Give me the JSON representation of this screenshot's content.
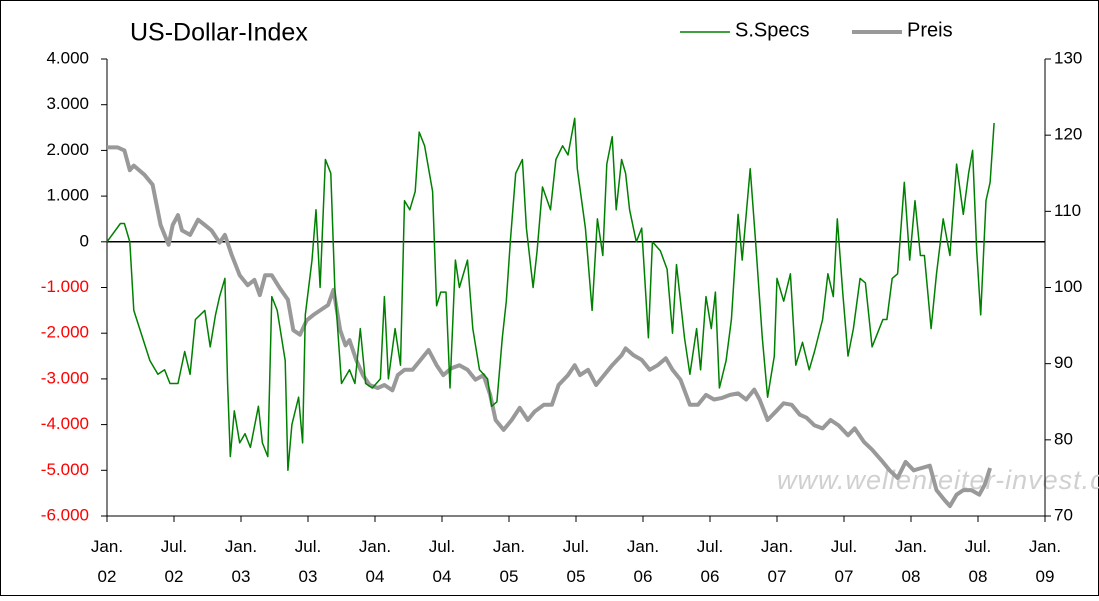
{
  "chart_data": {
    "type": "line",
    "title": "US-Dollar-Index",
    "watermark": "www.wellenreiter-invest.de",
    "zero_line": true,
    "negative_tick_color": "#ff0000",
    "xlim": [
      2002,
      2009
    ],
    "xticks": [
      {
        "value": 2002,
        "label": "Jan. 02"
      },
      {
        "value": 2002.5,
        "label": "Jul. 02"
      },
      {
        "value": 2003,
        "label": "Jan. 03"
      },
      {
        "value": 2003.5,
        "label": "Jul. 03"
      },
      {
        "value": 2004,
        "label": "Jan. 04"
      },
      {
        "value": 2004.5,
        "label": "Jul. 04"
      },
      {
        "value": 2005,
        "label": "Jan. 05"
      },
      {
        "value": 2005.5,
        "label": "Jul. 05"
      },
      {
        "value": 2006,
        "label": "Jan. 06"
      },
      {
        "value": 2006.5,
        "label": "Jul. 06"
      },
      {
        "value": 2007,
        "label": "Jan. 07"
      },
      {
        "value": 2007.5,
        "label": "Jul. 07"
      },
      {
        "value": 2008,
        "label": "Jan. 08"
      },
      {
        "value": 2008.5,
        "label": "Jul. 08"
      },
      {
        "value": 2009,
        "label": "Jan. 09"
      }
    ],
    "ylim": [
      -6000,
      4000
    ],
    "yticks": [
      {
        "value": 4000,
        "label": "4.000"
      },
      {
        "value": 3000,
        "label": "3.000"
      },
      {
        "value": 2000,
        "label": "2.000"
      },
      {
        "value": 1000,
        "label": "1.000"
      },
      0,
      {
        "value": -1000,
        "label": "-1.000"
      },
      {
        "value": -2000,
        "label": "-2.000"
      },
      {
        "value": -3000,
        "label": "-3.000"
      },
      {
        "value": -4000,
        "label": "-4.000"
      },
      {
        "value": -5000,
        "label": "-5.000"
      },
      {
        "value": -6000,
        "label": "-6.000"
      }
    ],
    "y2lim": [
      70,
      130
    ],
    "y2ticks": [
      70,
      80,
      90,
      100,
      110,
      120,
      130
    ],
    "series": [
      {
        "name": "S.Specs",
        "color": "#008000",
        "width": 1.5,
        "x": [
          2002.0,
          2002.1,
          2002.13,
          2002.17,
          2002.2,
          2002.32,
          2002.38,
          2002.43,
          2002.47,
          2002.53,
          2002.58,
          2002.62,
          2002.66,
          2002.73,
          2002.77,
          2002.81,
          2002.84,
          2002.88,
          2002.9,
          2002.92,
          2002.95,
          2002.99,
          2003.03,
          2003.07,
          2003.13,
          2003.16,
          2003.2,
          2003.23,
          2003.27,
          2003.33,
          2003.35,
          2003.38,
          2003.43,
          2003.46,
          2003.48,
          2003.53,
          2003.56,
          2003.59,
          2003.63,
          2003.67,
          2003.7,
          2003.75,
          2003.81,
          2003.85,
          2003.89,
          2003.93,
          2003.98,
          2004.04,
          2004.07,
          2004.1,
          2004.15,
          2004.19,
          2004.22,
          2004.26,
          2004.3,
          2004.33,
          2004.37,
          2004.43,
          2004.46,
          2004.49,
          2004.53,
          2004.56,
          2004.6,
          2004.63,
          2004.69,
          2004.73,
          2004.78,
          2004.84,
          2004.87,
          2004.91,
          2004.95,
          2004.98,
          2005.01,
          2005.05,
          2005.1,
          2005.13,
          2005.18,
          2005.21,
          2005.25,
          2005.31,
          2005.35,
          2005.4,
          2005.44,
          2005.49,
          2005.51,
          2005.57,
          2005.62,
          2005.66,
          2005.7,
          2005.73,
          2005.77,
          2005.8,
          2005.84,
          2005.87,
          2005.9,
          2005.95,
          2005.99,
          2006.04,
          2006.07,
          2006.13,
          2006.18,
          2006.22,
          2006.25,
          2006.31,
          2006.35,
          2006.4,
          2006.43,
          2006.47,
          2006.51,
          2006.54,
          2006.57,
          2006.62,
          2006.66,
          2006.71,
          2006.74,
          2006.8,
          2006.84,
          2006.89,
          2006.93,
          2006.98,
          2007.0,
          2007.05,
          2007.1,
          2007.14,
          2007.19,
          2007.24,
          2007.28,
          2007.34,
          2007.38,
          2007.42,
          2007.45,
          2007.49,
          2007.53,
          2007.57,
          2007.62,
          2007.66,
          2007.71,
          2007.75,
          2007.79,
          2007.82,
          2007.86,
          2007.9,
          2007.95,
          2007.99,
          2008.03,
          2008.07,
          2008.1,
          2008.15,
          2008.19,
          2008.24,
          2008.29,
          2008.34,
          2008.39,
          2008.43,
          2008.46,
          2008.49,
          2008.52,
          2008.56,
          2008.59,
          2008.62
        ],
        "values": [
          0,
          400,
          400,
          0,
          -1500,
          -2600,
          -2900,
          -2800,
          -3100,
          -3100,
          -2400,
          -2900,
          -1700,
          -1500,
          -2300,
          -1600,
          -1200,
          -800,
          -3100,
          -4700,
          -3700,
          -4400,
          -4200,
          -4500,
          -3600,
          -4400,
          -4700,
          -1200,
          -1500,
          -2600,
          -5000,
          -4000,
          -3400,
          -4400,
          -1600,
          -400,
          700,
          -1000,
          1800,
          1500,
          -1000,
          -3100,
          -2800,
          -3100,
          -1900,
          -3100,
          -3200,
          -3000,
          -1200,
          -3000,
          -1900,
          -2700,
          900,
          700,
          1100,
          2400,
          2100,
          1100,
          -1400,
          -1100,
          -1100,
          -3200,
          -400,
          -1000,
          -400,
          -1900,
          -2800,
          -3000,
          -3600,
          -3500,
          -2100,
          -1300,
          0,
          1500,
          1800,
          300,
          -1000,
          -200,
          1200,
          700,
          1800,
          2100,
          1900,
          2700,
          1600,
          300,
          -1500,
          500,
          -300,
          1700,
          2300,
          700,
          1800,
          1500,
          700,
          0,
          300,
          -2100,
          0,
          -200,
          -600,
          -2000,
          -500,
          -2100,
          -2900,
          -1900,
          -2800,
          -1200,
          -1900,
          -1100,
          -3200,
          -2600,
          -1700,
          600,
          -400,
          1600,
          0,
          -2100,
          -3400,
          -2500,
          -800,
          -1300,
          -700,
          -2700,
          -2200,
          -2800,
          -2400,
          -1700,
          -700,
          -1200,
          500,
          -1100,
          -2500,
          -1900,
          -800,
          -900,
          -2300,
          -2000,
          -1700,
          -1700,
          -800,
          -700,
          1300,
          -400,
          900,
          -300,
          -300,
          -1900,
          -700,
          500,
          -300,
          1700,
          600,
          1500,
          2000,
          -200,
          -1600,
          900,
          1300,
          2600
        ]
      },
      {
        "name": "Preis",
        "color": "#999999",
        "width": 4,
        "axis": "y2",
        "x": [
          2002.0,
          2002.08,
          2002.13,
          2002.17,
          2002.2,
          2002.28,
          2002.34,
          2002.4,
          2002.46,
          2002.49,
          2002.53,
          2002.56,
          2002.62,
          2002.68,
          2002.73,
          2002.78,
          2002.84,
          2002.88,
          2002.93,
          2002.99,
          2003.05,
          2003.1,
          2003.14,
          2003.18,
          2003.23,
          2003.29,
          2003.35,
          2003.39,
          2003.44,
          2003.49,
          2003.54,
          2003.59,
          2003.65,
          2003.69,
          2003.74,
          2003.78,
          2003.81,
          2003.86,
          2003.91,
          2003.96,
          2004.02,
          2004.07,
          2004.13,
          2004.17,
          2004.22,
          2004.28,
          2004.34,
          2004.4,
          2004.46,
          2004.51,
          2004.57,
          2004.63,
          2004.69,
          2004.75,
          2004.81,
          2004.86,
          2004.9,
          2004.96,
          2005.02,
          2005.08,
          2005.14,
          2005.19,
          2005.26,
          2005.32,
          2005.37,
          2005.44,
          2005.49,
          2005.53,
          2005.59,
          2005.65,
          2005.71,
          2005.77,
          2005.84,
          2005.87,
          2005.93,
          2005.99,
          2006.05,
          2006.11,
          2006.17,
          2006.22,
          2006.28,
          2006.35,
          2006.41,
          2006.47,
          2006.53,
          2006.59,
          2006.65,
          2006.71,
          2006.77,
          2006.83,
          2006.87,
          2006.93,
          2006.99,
          2007.05,
          2007.11,
          2007.17,
          2007.22,
          2007.28,
          2007.34,
          2007.4,
          2007.46,
          2007.53,
          2007.58,
          2007.65,
          2007.71,
          2007.78,
          2007.84,
          2007.9,
          2007.96,
          2008.02,
          2008.08,
          2008.14,
          2008.19,
          2008.25,
          2008.29,
          2008.34,
          2008.39,
          2008.45,
          2008.51,
          2008.55,
          2008.59
        ],
        "values": [
          118.4,
          118.4,
          118,
          115.4,
          116,
          114.8,
          113.5,
          108.2,
          105.6,
          108.2,
          109.5,
          107.5,
          106.9,
          108.9,
          108.2,
          107.5,
          105.9,
          106.9,
          104.3,
          101.6,
          100.3,
          101,
          99,
          101.6,
          101.6,
          99.9,
          98.4,
          94.4,
          93.8,
          95.7,
          96.4,
          97,
          97.7,
          99.7,
          94.4,
          92.4,
          93.1,
          90.5,
          88.5,
          87.2,
          86.8,
          87.2,
          86.5,
          88.5,
          89.2,
          89.2,
          90.5,
          91.8,
          89.8,
          88.5,
          89.4,
          89.8,
          89.2,
          87.9,
          88.5,
          85.9,
          82.6,
          81.3,
          82.6,
          84.2,
          82.6,
          83.7,
          84.6,
          84.6,
          87.2,
          88.5,
          89.8,
          88.5,
          89.2,
          87.2,
          88.5,
          89.8,
          91.1,
          92,
          91.1,
          90.5,
          89.2,
          89.8,
          90.7,
          89.2,
          87.9,
          84.6,
          84.6,
          85.9,
          85.3,
          85.5,
          85.9,
          86.1,
          85.3,
          86.6,
          85.3,
          82.6,
          83.7,
          84.8,
          84.6,
          83.3,
          82.9,
          81.9,
          81.5,
          82.6,
          81.9,
          80.6,
          81.5,
          79.7,
          78.7,
          77.3,
          76,
          75,
          77.1,
          76,
          76.3,
          76.6,
          73.4,
          72.1,
          71.3,
          72.8,
          73.4,
          73.4,
          72.8,
          74.1,
          76.3
        ]
      }
    ]
  }
}
